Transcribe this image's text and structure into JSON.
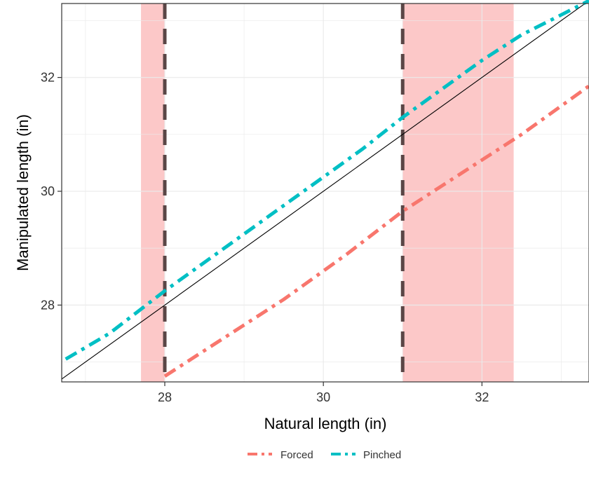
{
  "chart_data": {
    "type": "line",
    "xlabel": "Natural length (in)",
    "ylabel": "Manipulated length (in)",
    "xlim": [
      26.7,
      33.35
    ],
    "ylim": [
      26.65,
      33.3
    ],
    "x_ticks": [
      28,
      30,
      32
    ],
    "y_ticks": [
      28,
      30,
      32
    ],
    "x_tick_labels": [
      "28",
      "30",
      "32"
    ],
    "y_tick_labels": [
      "28",
      "30",
      "32"
    ],
    "grid": true,
    "legend_position": "bottom",
    "shaded_regions": [
      {
        "x_start": 27.7,
        "x_end": 28.0,
        "color": "#fcc8c8"
      },
      {
        "x_start": 31.0,
        "x_end": 32.4,
        "color": "#fcc8c8"
      }
    ],
    "vertical_lines": [
      {
        "x": 28.0,
        "style": "dashed",
        "color": "#5a4646"
      },
      {
        "x": 31.0,
        "style": "dashed",
        "color": "#5a4646"
      }
    ],
    "identity_line": {
      "x": [
        26.7,
        33.35
      ],
      "y": [
        26.7,
        33.35
      ],
      "color": "#000000"
    },
    "series": [
      {
        "name": "Forced",
        "color": "#f8766d",
        "style": "dotdash",
        "x": [
          28.0,
          28.5,
          29.0,
          29.5,
          30.0,
          30.3,
          31.0,
          31.5,
          32.0,
          32.5,
          33.0,
          33.35
        ],
        "y": [
          26.75,
          27.2,
          27.65,
          28.1,
          28.6,
          28.9,
          29.65,
          30.1,
          30.55,
          31.0,
          31.5,
          31.85
        ]
      },
      {
        "name": "Pinched",
        "color": "#00bfc4",
        "style": "dotdash",
        "x": [
          26.75,
          27.3,
          28.0,
          28.5,
          29.0,
          29.5,
          30.0,
          30.5,
          31.0,
          31.5,
          32.0,
          32.5,
          33.0,
          33.35
        ],
        "y": [
          27.05,
          27.5,
          28.25,
          28.75,
          29.25,
          29.75,
          30.25,
          30.75,
          31.3,
          31.8,
          32.3,
          32.75,
          33.1,
          33.35
        ]
      }
    ]
  }
}
